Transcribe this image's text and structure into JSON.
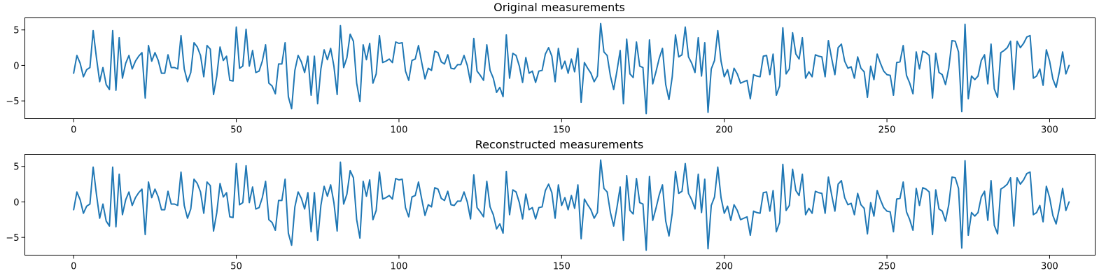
{
  "chart_data": [
    {
      "type": "line",
      "title": "Original measurements",
      "xlabel": "",
      "ylabel": "",
      "xlim": [
        -15,
        314
      ],
      "ylim": [
        -7.5,
        6.7
      ],
      "xticks": [
        0,
        50,
        100,
        150,
        200,
        250,
        300
      ],
      "yticks": [
        -5,
        0,
        5
      ],
      "grid": false,
      "legend": "none",
      "color": "#1f77b4",
      "series": [
        {
          "values": [
            -1.1,
            1.4,
            0.3,
            -1.6,
            -0.6,
            -0.3,
            4.9,
            1.1,
            -2.3,
            -0.3,
            -2.7,
            -3.4,
            4.9,
            -3.5,
            3.9,
            -1.8,
            0.3,
            1.4,
            -0.5,
            0.6,
            1.3,
            1.8,
            -4.6,
            2.8,
            0.6,
            1.8,
            0.7,
            -1.1,
            -1.1,
            1.5,
            -0.3,
            -0.3,
            -0.5,
            4.2,
            -0.5,
            -2.3,
            -1.0,
            3.2,
            2.6,
            1.4,
            -1.6,
            2.8,
            2.3,
            -4.1,
            -1.5,
            2.6,
            0.7,
            1.3,
            -2.1,
            -2.2,
            5.4,
            -0.4,
            -0.1,
            5.1,
            -0.1,
            2.1,
            -1.0,
            -0.8,
            0.6,
            2.9,
            -2.5,
            -2.9,
            -4.0,
            0.2,
            0.2,
            3.2,
            -4.4,
            -6.1,
            -0.7,
            1.4,
            0.5,
            -1.0,
            1.3,
            -4.2,
            1.3,
            -5.4,
            -0.5,
            2.2,
            0.8,
            2.4,
            -0.1,
            -4.1,
            5.6,
            -0.3,
            1.1,
            4.4,
            3.4,
            -2.5,
            -5.1,
            2.9,
            0.8,
            3.1,
            -2.5,
            -1.2,
            4.2,
            0.4,
            0.6,
            0.9,
            0.4,
            3.3,
            3.1,
            3.2,
            -0.8,
            -2.1,
            0.7,
            0.9,
            2.8,
            0.4,
            -1.9,
            -0.4,
            -0.7,
            2.0,
            1.8,
            0.5,
            0.2,
            1.5,
            -0.4,
            -0.5,
            0.1,
            0.1,
            1.4,
            0.0,
            -2.4,
            3.8,
            -0.8,
            -1.4,
            -2.1,
            2.9,
            -0.7,
            -1.8,
            -3.8,
            -3.1,
            -4.4,
            4.3,
            -1.8,
            1.7,
            1.4,
            -0.1,
            -2.4,
            1.1,
            -1.1,
            -0.8,
            -2.4,
            -0.8,
            -0.7,
            1.6,
            2.5,
            1.3,
            -2.3,
            2.4,
            -0.5,
            0.6,
            -1.1,
            0.9,
            -0.9,
            2.4,
            -5.2,
            0.4,
            -0.4,
            -1.1,
            -2.3,
            -1.5,
            5.9,
            1.9,
            1.4,
            -1.5,
            -3.4,
            -0.8,
            2.1,
            -5.4,
            3.7,
            -1.2,
            -1.7,
            3.3,
            -0.1,
            -0.3,
            -6.8,
            3.6,
            -2.6,
            -0.9,
            1.0,
            2.4,
            -2.7,
            -4.8,
            -1.6,
            4.3,
            1.2,
            1.5,
            5.4,
            1.2,
            0.3,
            -1.0,
            3.9,
            -1.5,
            3.2,
            -6.6,
            -0.5,
            0.7,
            4.9,
            0.6,
            -1.6,
            -0.6,
            -2.6,
            -0.4,
            -1.2,
            -2.5,
            -2.3,
            -2.1,
            -4.7,
            -1.3,
            -1.5,
            -1.6,
            1.3,
            1.4,
            -1.3,
            1.6,
            -4.2,
            -2.9,
            5.3,
            -1.2,
            -0.5,
            4.6,
            1.6,
            0.9,
            3.9,
            -1.8,
            -0.9,
            -1.6,
            1.5,
            1.3,
            1.2,
            -1.6,
            3.5,
            1.0,
            -1.3,
            2.5,
            3.0,
            0.6,
            -0.4,
            -0.2,
            -1.8,
            1.2,
            -0.4,
            -0.9,
            -4.5,
            -0.1,
            -2.0,
            1.6,
            0.3,
            -0.8,
            -1.3,
            -1.4,
            -4.2,
            0.4,
            0.5,
            2.8,
            -1.4,
            -2.5,
            -4.0,
            1.9,
            -0.5,
            2.0,
            1.8,
            1.4,
            -4.6,
            1.7,
            -1.0,
            -1.3,
            -2.7,
            -0.4,
            3.5,
            3.4,
            1.9,
            -6.5,
            5.8,
            -4.7,
            -1.5,
            -2.0,
            -1.5,
            0.7,
            1.5,
            -2.6,
            3.0,
            -3.3,
            -4.5,
            1.8,
            2.1,
            2.5,
            3.4,
            -3.4,
            3.4,
            2.5,
            3.1,
            4.0,
            4.2,
            -1.8,
            -1.5,
            -0.5,
            -2.8,
            2.2,
            0.6,
            -1.9,
            -3.1,
            -0.9,
            1.9,
            -1.2,
            0.0
          ]
        }
      ]
    },
    {
      "type": "line",
      "title": "Reconstructed measurements",
      "xlabel": "",
      "ylabel": "",
      "xlim": [
        -15,
        314
      ],
      "ylim": [
        -7.5,
        6.7
      ],
      "xticks": [
        0,
        50,
        100,
        150,
        200,
        250,
        300
      ],
      "yticks": [
        -5,
        0,
        5
      ],
      "grid": false,
      "legend": "none",
      "color": "#1f77b4",
      "series": [
        {
          "values": [
            -1.1,
            1.4,
            0.3,
            -1.6,
            -0.6,
            -0.3,
            4.9,
            1.1,
            -2.3,
            -0.3,
            -2.7,
            -3.4,
            4.9,
            -3.5,
            3.9,
            -1.8,
            0.3,
            1.4,
            -0.5,
            0.6,
            1.3,
            1.8,
            -4.6,
            2.8,
            0.6,
            1.8,
            0.7,
            -1.1,
            -1.1,
            1.5,
            -0.3,
            -0.3,
            -0.5,
            4.2,
            -0.5,
            -2.3,
            -1.0,
            3.2,
            2.6,
            1.4,
            -1.6,
            2.8,
            2.3,
            -4.1,
            -1.5,
            2.6,
            0.7,
            1.3,
            -2.1,
            -2.2,
            5.4,
            -0.4,
            -0.1,
            5.1,
            -0.1,
            2.1,
            -1.0,
            -0.8,
            0.6,
            2.9,
            -2.5,
            -2.9,
            -4.0,
            0.2,
            0.2,
            3.2,
            -4.4,
            -6.1,
            -0.7,
            1.4,
            0.5,
            -1.0,
            1.3,
            -4.2,
            1.3,
            -5.4,
            -0.5,
            2.2,
            0.8,
            2.4,
            -0.1,
            -4.1,
            5.6,
            -0.3,
            1.1,
            4.4,
            3.4,
            -2.5,
            -5.1,
            2.9,
            0.8,
            3.1,
            -2.5,
            -1.2,
            4.2,
            0.4,
            0.6,
            0.9,
            0.4,
            3.3,
            3.1,
            3.2,
            -0.8,
            -2.1,
            0.7,
            0.9,
            2.8,
            0.4,
            -1.9,
            -0.4,
            -0.7,
            2.0,
            1.8,
            0.5,
            0.2,
            1.5,
            -0.4,
            -0.5,
            0.1,
            0.1,
            1.4,
            0.0,
            -2.4,
            3.8,
            -0.8,
            -1.4,
            -2.1,
            2.9,
            -0.7,
            -1.8,
            -3.8,
            -3.1,
            -4.4,
            4.3,
            -1.8,
            1.7,
            1.4,
            -0.1,
            -2.4,
            1.1,
            -1.1,
            -0.8,
            -2.4,
            -0.8,
            -0.7,
            1.6,
            2.5,
            1.3,
            -2.3,
            2.4,
            -0.5,
            0.6,
            -1.1,
            0.9,
            -0.9,
            2.4,
            -5.2,
            0.4,
            -0.4,
            -1.1,
            -2.3,
            -1.5,
            5.9,
            1.9,
            1.4,
            -1.5,
            -3.4,
            -0.8,
            2.1,
            -5.4,
            3.7,
            -1.2,
            -1.7,
            3.3,
            -0.1,
            -0.3,
            -6.8,
            3.6,
            -2.6,
            -0.9,
            1.0,
            2.4,
            -2.7,
            -4.8,
            -1.6,
            4.3,
            1.2,
            1.5,
            5.4,
            1.2,
            0.3,
            -1.0,
            3.9,
            -1.5,
            3.2,
            -6.6,
            -0.5,
            0.7,
            4.9,
            0.6,
            -1.6,
            -0.6,
            -2.6,
            -0.4,
            -1.2,
            -2.5,
            -2.3,
            -2.1,
            -4.7,
            -1.3,
            -1.5,
            -1.6,
            1.3,
            1.4,
            -1.3,
            1.6,
            -4.2,
            -2.9,
            5.3,
            -1.2,
            -0.5,
            4.6,
            1.6,
            0.9,
            3.9,
            -1.8,
            -0.9,
            -1.6,
            1.5,
            1.3,
            1.2,
            -1.6,
            3.5,
            1.0,
            -1.3,
            2.5,
            3.0,
            0.6,
            -0.4,
            -0.2,
            -1.8,
            1.2,
            -0.4,
            -0.9,
            -4.5,
            -0.1,
            -2.0,
            1.6,
            0.3,
            -0.8,
            -1.3,
            -1.4,
            -4.2,
            0.4,
            0.5,
            2.8,
            -1.4,
            -2.5,
            -4.0,
            1.9,
            -0.5,
            2.0,
            1.8,
            1.4,
            -4.6,
            1.7,
            -1.0,
            -1.3,
            -2.7,
            -0.4,
            3.5,
            3.4,
            1.9,
            -6.5,
            5.8,
            -4.7,
            -1.5,
            -2.0,
            -1.5,
            0.7,
            1.5,
            -2.6,
            3.0,
            -3.3,
            -4.5,
            1.8,
            2.1,
            2.5,
            3.4,
            -3.4,
            3.4,
            2.5,
            3.1,
            4.0,
            4.2,
            -1.8,
            -1.5,
            -0.5,
            -2.8,
            2.2,
            0.6,
            -1.9,
            -3.1,
            -0.9,
            1.9,
            -1.2,
            0.0
          ]
        }
      ]
    }
  ]
}
